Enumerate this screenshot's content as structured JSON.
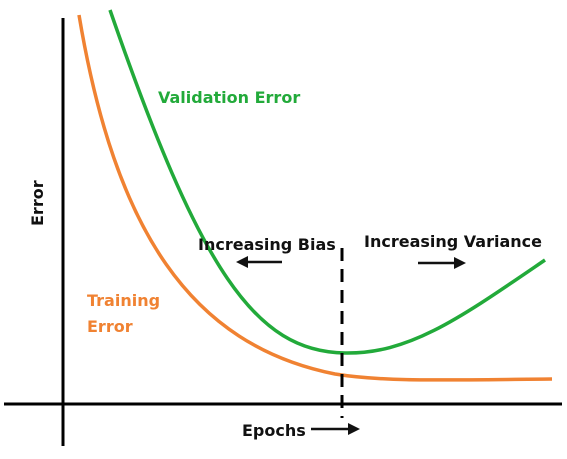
{
  "chart_data": {
    "type": "line",
    "xlabel": "Epochs",
    "ylabel": "Error",
    "grid": false,
    "annotations": {
      "bias": "Increasing Bias",
      "variance": "Increasing Variance"
    },
    "series": [
      {
        "name": "Validation Error",
        "label_line1": "Validation Error",
        "color": "#22aa3a"
      },
      {
        "name": "Training Error",
        "label_line1": "Training",
        "label_line2": "Error",
        "color": "#f08232"
      }
    ],
    "colors": {
      "axis": "#000000",
      "annotation": "#111111"
    }
  }
}
